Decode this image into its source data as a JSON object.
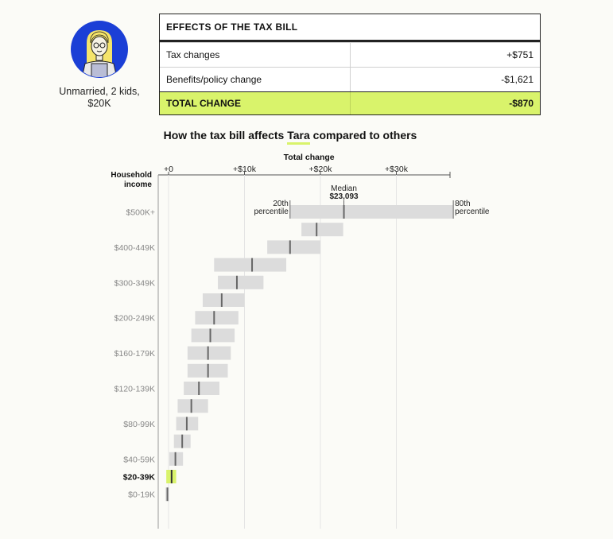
{
  "persona": {
    "caption_line1": "Unmarried, 2 kids,",
    "caption_line2": "$20K"
  },
  "effects_table": {
    "title": "EFFECTS OF THE TAX BILL",
    "rows": [
      {
        "label": "Tax changes",
        "value": "+$751"
      },
      {
        "label": "Benefits/policy change",
        "value": "-$1,621"
      }
    ],
    "total": {
      "label": "TOTAL CHANGE",
      "value": "-$870"
    }
  },
  "chart_title": {
    "prefix": "How the tax bill affects ",
    "name": "Tara",
    "suffix": " compared to others"
  },
  "colors": {
    "highlight": "#d9f36b",
    "bar": "#dcdcdc",
    "median_tick": "#666666",
    "avatar_bg": "#1b3fd6"
  },
  "chart_data": {
    "type": "range-bar",
    "xlabel": "Total change",
    "ylabel_line1": "Household",
    "ylabel_line2": "income",
    "x_ticks": [
      {
        "value": 0,
        "label": "+0"
      },
      {
        "value": 10000,
        "label": "+$10k"
      },
      {
        "value": 20000,
        "label": "+$20k"
      },
      {
        "value": 30000,
        "label": "+$30k"
      }
    ],
    "xlim": [
      -1500,
      38000
    ],
    "annotations": {
      "median_label": "Median",
      "median_value": "$23,093",
      "p20_line1": "20th",
      "p20_line2": "percentile",
      "p80_line1": "80th",
      "p80_line2": "percentile"
    },
    "highlight_category": "$20-39K",
    "rows": [
      {
        "label": "$500K+",
        "p20": 16000,
        "median": 23093,
        "p80": 37500
      },
      {
        "label": "",
        "p20": 17500,
        "median": 19500,
        "p80": 23000
      },
      {
        "label": "$400-449K",
        "p20": 13000,
        "median": 16000,
        "p80": 20000
      },
      {
        "label": "",
        "p20": 6000,
        "median": 11000,
        "p80": 15500
      },
      {
        "label": "$300-349K",
        "p20": 6500,
        "median": 9000,
        "p80": 12500
      },
      {
        "label": "",
        "p20": 4500,
        "median": 7000,
        "p80": 10000
      },
      {
        "label": "$200-249K",
        "p20": 3500,
        "median": 6000,
        "p80": 9200
      },
      {
        "label": "",
        "p20": 3000,
        "median": 5500,
        "p80": 8700
      },
      {
        "label": "$160-179K",
        "p20": 2500,
        "median": 5200,
        "p80": 8200
      },
      {
        "label": "",
        "p20": 2500,
        "median": 5200,
        "p80": 7800
      },
      {
        "label": "$120-139K",
        "p20": 2000,
        "median": 4000,
        "p80": 6700
      },
      {
        "label": "",
        "p20": 1200,
        "median": 3000,
        "p80": 5200
      },
      {
        "label": "$80-99K",
        "p20": 1000,
        "median": 2400,
        "p80": 3900
      },
      {
        "label": "",
        "p20": 700,
        "median": 1800,
        "p80": 2900
      },
      {
        "label": "$40-59K",
        "p20": 100,
        "median": 900,
        "p80": 1900
      },
      {
        "label": "$20-39K",
        "p20": -300,
        "median": 400,
        "p80": 1000
      },
      {
        "label": "$0-19K",
        "p20": -400,
        "median": -150,
        "p80": 50
      }
    ]
  }
}
